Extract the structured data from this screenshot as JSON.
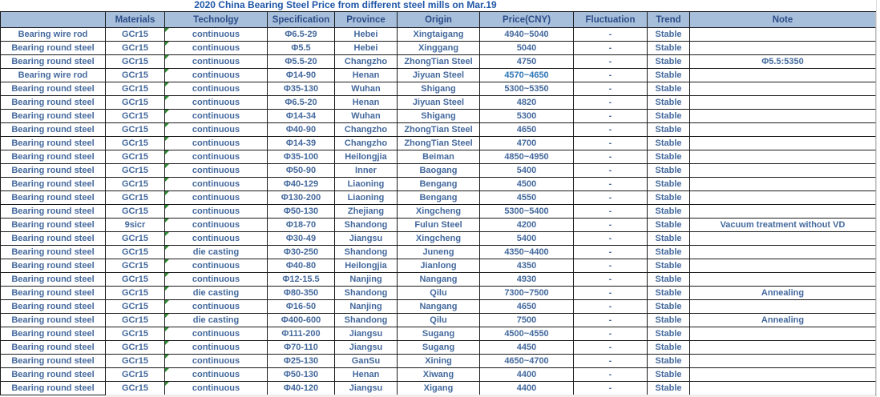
{
  "title": "2020 China Bearing Steel Price from different steel mills on Mar.19",
  "columns": [
    "",
    "Materials",
    "Technolgy",
    "Specification",
    "Province",
    "Origin",
    "Price(CNY)",
    "Fluctuation",
    "Trend",
    "Note"
  ],
  "highlight_price_row": 3,
  "colors": {
    "header_bg": "#A8BFDC",
    "header_text": "#2B4C86",
    "cell_text": "#44699D",
    "title_text": "#2057A7",
    "highlight_price_text": "#2E75B6",
    "error_indicator_green": "#2F8A2F"
  },
  "rows": [
    [
      "Bearing wire rod",
      "GCr15",
      "continuous",
      "Φ6.5-29",
      "Hebei",
      "Xingtaigang",
      "4940~5040",
      "-",
      "Stable",
      ""
    ],
    [
      "Bearing round steel",
      "GCr15",
      "continuous",
      "Φ5.5",
      "Hebei",
      "Xinggang",
      "5040",
      "-",
      "Stable",
      ""
    ],
    [
      "Bearing round steel",
      "GCr15",
      "continuous",
      "Φ5.5-20",
      "Changzho",
      "ZhongTian Steel",
      "4750",
      "-",
      "Stable",
      "Φ5.5:5350"
    ],
    [
      "Bearing wire rod",
      "GCr15",
      "continuous",
      "Φ14-90",
      "Henan",
      "Jiyuan Steel",
      "4570~4650",
      "-",
      "Stable",
      ""
    ],
    [
      "Bearing round steel",
      "GCr15",
      "continuous",
      "Φ35-130",
      "Wuhan",
      "Shigang",
      "5300~5350",
      "-",
      "Stable",
      ""
    ],
    [
      "Bearing round steel",
      "GCr15",
      "continuous",
      "Φ6.5-20",
      "Henan",
      "Jiyuan Steel",
      "4820",
      "-",
      "Stable",
      ""
    ],
    [
      "Bearing round steel",
      "GCr15",
      "continuous",
      "Φ14-34",
      "Wuhan",
      "Shigang",
      "5300",
      "-",
      "Stable",
      ""
    ],
    [
      "Bearing round steel",
      "GCr15",
      "continuous",
      "Φ40-90",
      "Changzho",
      "ZhongTian Steel",
      "4650",
      "-",
      "Stable",
      ""
    ],
    [
      "Bearing round steel",
      "GCr15",
      "continuous",
      "Φ14-39",
      "Changzho",
      "ZhongTian Steel",
      "4700",
      "-",
      "Stable",
      ""
    ],
    [
      "Bearing round steel",
      "GCr15",
      "continuous",
      "Φ35-100",
      "Heilongjia",
      "Beiman",
      "4850~4950",
      "-",
      "Stable",
      ""
    ],
    [
      "Bearing round steel",
      "GCr15",
      "continuous",
      "Φ50-90",
      "Inner",
      "Baogang",
      "5400",
      "-",
      "Stable",
      ""
    ],
    [
      "Bearing round steel",
      "GCr15",
      "continuous",
      "Φ40-129",
      "Liaoning",
      "Bengang",
      "4500",
      "-",
      "Stable",
      ""
    ],
    [
      "Bearing round steel",
      "GCr15",
      "continuous",
      "Φ130-200",
      "Liaoning",
      "Bengang",
      "4550",
      "-",
      "Stable",
      ""
    ],
    [
      "Bearing round steel",
      "GCr15",
      "continuous",
      "Φ50-130",
      "Zhejiang",
      "Xingcheng",
      "5300~5400",
      "-",
      "Stable",
      ""
    ],
    [
      "Bearing round steel",
      "9sicr",
      "continuous",
      "Φ18-70",
      "Shandong",
      "Fulun Steel",
      "4200",
      "-",
      "Stable",
      "Vacuum treatment without VD"
    ],
    [
      "Bearing round steel",
      "GCr15",
      "continuous",
      "Φ30-49",
      "Jiangsu",
      "Xingcheng",
      "5400",
      "-",
      "Stable",
      ""
    ],
    [
      "Bearing round steel",
      "GCr15",
      "die casting",
      "Φ30-250",
      "Shandong",
      "Juneng",
      "4350~4400",
      "-",
      "Stable",
      ""
    ],
    [
      "Bearing round steel",
      "GCr15",
      "continuous",
      "Φ40-80",
      "Heilongjia",
      "Jianlong",
      "4350",
      "-",
      "Stable",
      ""
    ],
    [
      "Bearing round steel",
      "GCr15",
      "continuous",
      "Φ12-15.5",
      "Nanjing",
      "Nangang",
      "4930",
      "-",
      "Stable",
      ""
    ],
    [
      "Bearing round steel",
      "GCr15",
      "die casting",
      "Φ80-350",
      "Shandong",
      "Qilu",
      "7300~7500",
      "-",
      "Stable",
      "Annealing"
    ],
    [
      "Bearing round steel",
      "GCr15",
      "continuous",
      "Φ16-50",
      "Nanjing",
      "Nangang",
      "4650",
      "-",
      "Stable",
      ""
    ],
    [
      "Bearing round steel",
      "GCr15",
      "die casting",
      "Φ400-600",
      "Shandong",
      "Qilu",
      "7500",
      "-",
      "Stable",
      "Annealing"
    ],
    [
      "Bearing round steel",
      "GCr15",
      "continuous",
      "Φ111-200",
      "Jiangsu",
      "Sugang",
      "4500~4550",
      "-",
      "Stable",
      ""
    ],
    [
      "Bearing round steel",
      "GCr15",
      "continuous",
      "Φ70-110",
      "Jiangsu",
      "Sugang",
      "4450",
      "-",
      "Stable",
      ""
    ],
    [
      "Bearing round steel",
      "GCr15",
      "continuous",
      "Φ25-130",
      "GanSu",
      "Xining",
      "4650~4700",
      "-",
      "Stable",
      ""
    ],
    [
      "Bearing round steel",
      "GCr15",
      "continuous",
      "Φ50-130",
      "Henan",
      "Xiwang",
      "4400",
      "-",
      "Stable",
      ""
    ],
    [
      "Bearing round steel",
      "GCr15",
      "continuous",
      "Φ40-120",
      "Jiangsu",
      "Xigang",
      "4400",
      "-",
      "Stable",
      ""
    ]
  ]
}
